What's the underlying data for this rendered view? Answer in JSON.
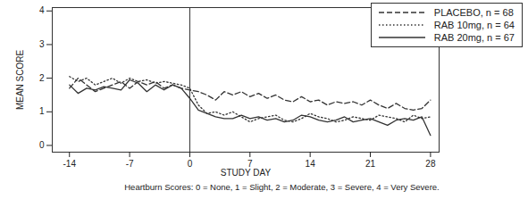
{
  "chart_data": {
    "type": "line",
    "x_label": "STUDY DAY",
    "y_label": "MEAN SCORE",
    "caption": "Heartburn Scores: 0 = None, 1 = Slight, 2 = Moderate, 3 = Severe, 4 = Very Severe.",
    "legend": "top-right",
    "vline": 0,
    "xlim": [
      -16,
      29
    ],
    "ylim": [
      -0.2,
      4.1
    ],
    "xticks": [
      -14,
      -7,
      0,
      7,
      14,
      21,
      28
    ],
    "yticks": [
      0,
      1,
      2,
      3,
      4
    ],
    "x": [
      -14,
      -13,
      -12,
      -11,
      -10,
      -9,
      -8,
      -7,
      -6,
      -5,
      -4,
      -3,
      -2,
      -1,
      0,
      1,
      2,
      3,
      4,
      5,
      6,
      7,
      8,
      9,
      10,
      11,
      12,
      13,
      14,
      15,
      16,
      17,
      18,
      19,
      20,
      21,
      22,
      23,
      24,
      25,
      26,
      27,
      28
    ],
    "series": [
      {
        "name": "PLACEBO, n = 68",
        "color": "#333333",
        "line_style": "dashed",
        "values": [
          1.7,
          2.0,
          1.8,
          1.6,
          1.7,
          1.8,
          1.9,
          1.7,
          1.9,
          1.8,
          1.9,
          1.7,
          1.8,
          1.7,
          1.65,
          1.6,
          1.5,
          1.35,
          1.6,
          1.5,
          1.6,
          1.45,
          1.55,
          1.4,
          1.5,
          1.35,
          1.3,
          1.45,
          1.3,
          1.35,
          1.2,
          1.3,
          1.25,
          1.3,
          1.2,
          1.35,
          1.2,
          1.1,
          1.25,
          1.1,
          1.05,
          1.1,
          1.35
        ]
      },
      {
        "name": "RAB 10mg, n = 64",
        "color": "#333333",
        "line_style": "dotted",
        "values": [
          2.05,
          1.9,
          2.0,
          1.8,
          1.9,
          2.0,
          1.85,
          2.0,
          1.9,
          1.95,
          1.85,
          1.9,
          1.85,
          1.8,
          1.7,
          1.2,
          0.95,
          1.0,
          0.9,
          1.0,
          0.85,
          0.7,
          0.8,
          0.85,
          0.9,
          0.75,
          0.7,
          0.8,
          0.95,
          0.85,
          0.8,
          0.7,
          0.75,
          0.85,
          0.8,
          0.75,
          0.9,
          0.85,
          0.8,
          0.7,
          0.9,
          0.8,
          0.85
        ]
      },
      {
        "name": "RAB 20mg, n = 67",
        "color": "#333333",
        "line_style": "solid",
        "values": [
          1.8,
          1.55,
          1.7,
          1.65,
          1.75,
          1.7,
          1.65,
          1.95,
          1.85,
          1.6,
          1.8,
          1.65,
          1.8,
          1.7,
          1.4,
          1.05,
          0.95,
          0.85,
          0.8,
          0.8,
          0.9,
          0.8,
          0.85,
          0.75,
          0.8,
          0.7,
          0.75,
          0.9,
          0.85,
          0.75,
          0.7,
          0.75,
          0.85,
          0.7,
          0.75,
          0.8,
          0.7,
          0.6,
          0.75,
          0.8,
          0.75,
          0.85,
          0.3
        ]
      }
    ]
  }
}
